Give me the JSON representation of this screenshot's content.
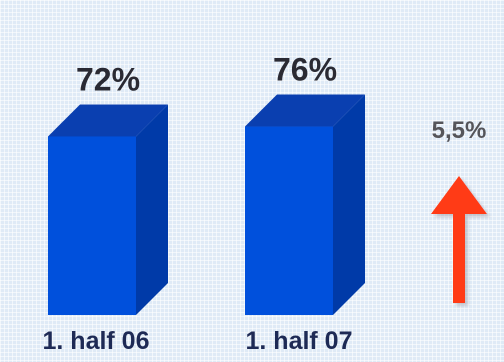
{
  "chart_data": {
    "type": "bar",
    "categories": [
      "1. half 06",
      "1. half 07"
    ],
    "values": [
      72,
      76
    ],
    "value_labels": [
      "72%",
      "76%"
    ],
    "style": "3d",
    "colors": {
      "bar_front": "#0050dc",
      "bar_top": "#0a3fb0",
      "bar_side": "#003aa8",
      "arrow": "#ff3b12"
    },
    "annotation": {
      "text": "5,5%",
      "direction": "up"
    }
  }
}
